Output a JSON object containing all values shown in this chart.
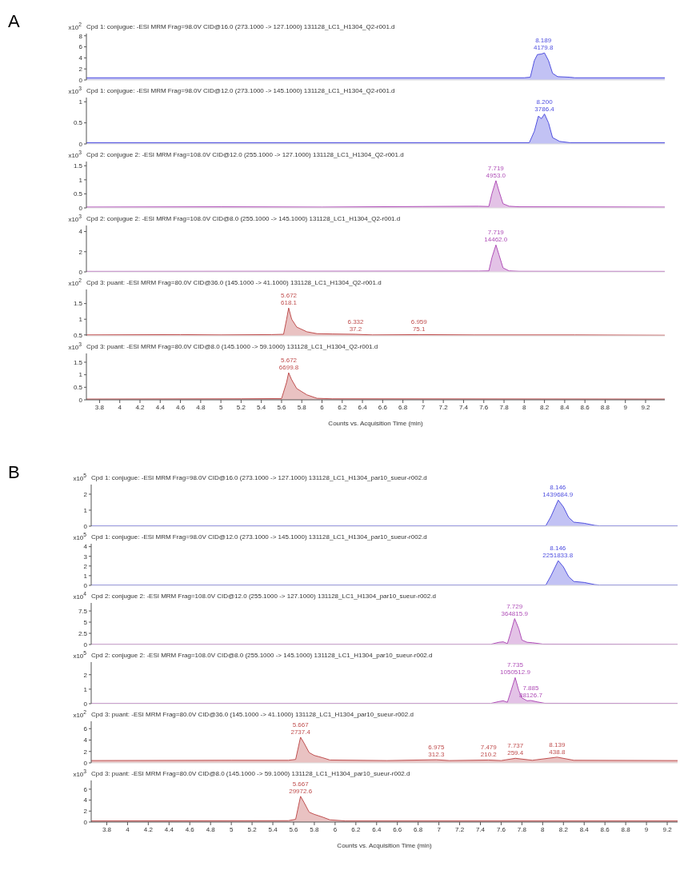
{
  "chart_data": [
    {
      "type": "area",
      "title": "Cpd 1: conjugue: -ESI MRM Frag=98.0V CID@16.0 (273.1000 -> 127.1000) 131128_LC1_H1304_Q2-r001.d",
      "ylabel": "x10$^{2}$",
      "color": "#5050e0",
      "tick_labels": "y",
      "xlim": [
        3.67,
        9.39
      ],
      "ylim": [
        0,
        8.4
      ],
      "yticks": [
        0,
        2,
        4,
        6,
        8
      ],
      "x": [
        3.67,
        8.0,
        8.06,
        8.1,
        8.13,
        8.17,
        8.2,
        8.24,
        8.28,
        8.33,
        8.45,
        8.5,
        9.39
      ],
      "values": [
        0.4,
        0.4,
        0.5,
        3.5,
        4.6,
        4.7,
        4.9,
        3.5,
        1.2,
        0.6,
        0.5,
        0.4,
        0.4
      ],
      "annotations": [
        "A",
        {
          "text": "8.189\n4179.8",
          "x": 8.189,
          "y": 4.9
        }
      ]
    },
    {
      "type": "area",
      "title": "Cpd 1: conjugue: -ESI MRM Frag=98.0V CID@12.0 (273.1000 -> 145.1000) 131128_LC1_H1304_Q2-r001.d",
      "ylabel": "x10$^{3}$",
      "color": "#5050e0",
      "tick_labels": "y",
      "xlim": [
        3.67,
        9.39
      ],
      "ylim": [
        0,
        1.1
      ],
      "yticks": [
        0,
        0.5,
        1
      ],
      "x": [
        3.67,
        8.05,
        8.1,
        8.14,
        8.17,
        8.2,
        8.24,
        8.28,
        8.35,
        8.45,
        9.39
      ],
      "values": [
        0.03,
        0.03,
        0.3,
        0.66,
        0.6,
        0.71,
        0.5,
        0.15,
        0.06,
        0.03,
        0.03
      ],
      "annotations": [
        {
          "text": "8.200\n3786.4",
          "x": 8.2,
          "y": 0.71
        }
      ]
    },
    {
      "type": "area",
      "title": "Cpd 2: conjugue 2: -ESI MRM Frag=108.0V CID@12.0 (255.1000 -> 127.1000) 131128_LC1_H1304_Q2-r001.d",
      "ylabel": "x10$^{3}$",
      "color": "#b050b8",
      "tick_labels": "y",
      "xlim": [
        3.67,
        9.39
      ],
      "ylim": [
        0,
        1.65
      ],
      "yticks": [
        0,
        0.5,
        1,
        1.5
      ],
      "x": [
        3.67,
        5,
        6,
        7,
        7.55,
        7.65,
        7.68,
        7.72,
        7.75,
        7.79,
        7.85,
        7.95,
        9.39
      ],
      "values": [
        0.03,
        0.04,
        0.03,
        0.05,
        0.06,
        0.05,
        0.5,
        0.97,
        0.6,
        0.15,
        0.06,
        0.04,
        0.03
      ],
      "annotations": [
        {
          "text": "7.719\n4953.0",
          "x": 7.719,
          "y": 0.97
        }
      ]
    },
    {
      "type": "area",
      "title": "Cpd 2: conjugue 2: -ESI MRM Frag=108.0V CID@8.0 (255.1000 -> 145.1000) 131128_LC1_H1304_Q2-r001.d",
      "ylabel": "x10$^{3}$",
      "color": "#b050b8",
      "tick_labels": "y",
      "xlim": [
        3.67,
        9.39
      ],
      "ylim": [
        0,
        4.6
      ],
      "yticks": [
        0,
        2,
        4
      ],
      "x": [
        3.67,
        7.55,
        7.65,
        7.68,
        7.72,
        7.75,
        7.79,
        7.85,
        7.95,
        9.39
      ],
      "values": [
        0.05,
        0.08,
        0.1,
        1.4,
        2.67,
        1.7,
        0.4,
        0.1,
        0.06,
        0.05
      ],
      "annotations": [
        {
          "text": "7.719\n14462.0",
          "x": 7.719,
          "y": 2.67
        }
      ]
    },
    {
      "type": "area",
      "title": "Cpd 3: puant: -ESI MRM Frag=80.0V CID@36.0 (145.1000 -> 41.1000) 131128_LC1_H1304_Q2-r001.d",
      "ylabel": "x10$^{2}$",
      "color": "#c05050",
      "tick_labels": "y",
      "xlim": [
        3.67,
        9.39
      ],
      "ylim": [
        0.47,
        1.95
      ],
      "yticks": [
        0.5,
        1,
        1.5
      ],
      "x": [
        3.67,
        4.6,
        5.0,
        5.5,
        5.62,
        5.65,
        5.67,
        5.7,
        5.75,
        5.85,
        5.95,
        6.1,
        6.33,
        6.5,
        6.96,
        7.5,
        8.5,
        9.39
      ],
      "values": [
        0.5,
        0.51,
        0.5,
        0.51,
        0.52,
        1.0,
        1.36,
        1.0,
        0.75,
        0.6,
        0.54,
        0.53,
        0.52,
        0.5,
        0.51,
        0.5,
        0.5,
        0.49
      ],
      "annotations": [
        {
          "text": "5.672\n618.1",
          "x": 5.672,
          "y": 1.36
        },
        {
          "text": "6.332\n37.2",
          "x": 6.332,
          "y": 0.52
        },
        {
          "text": "6.959\n75.1",
          "x": 6.959,
          "y": 0.51
        }
      ]
    },
    {
      "type": "area",
      "title": "Cpd 3: puant: -ESI MRM Frag=80.0V CID@8.0 (145.1000 -> 59.1000) 131128_LC1_H1304_Q2-r001.d",
      "ylabel": "x10$^{3}$",
      "xlabel": "Counts vs. Acquisition Time (min)",
      "color": "#c05050",
      "xlim": [
        3.67,
        9.39
      ],
      "ylim": [
        0,
        1.85
      ],
      "yticks": [
        0,
        0.5,
        1,
        1.5
      ],
      "xticks": [
        3.8,
        4,
        4.2,
        4.4,
        4.6,
        4.8,
        5,
        5.2,
        5.4,
        5.6,
        5.8,
        6,
        6.2,
        6.4,
        6.6,
        6.8,
        7,
        7.2,
        7.4,
        7.6,
        7.8,
        8,
        8.2,
        8.4,
        8.6,
        8.8,
        9,
        9.2
      ],
      "x": [
        3.67,
        5.2,
        5.6,
        5.65,
        5.67,
        5.7,
        5.75,
        5.85,
        5.95,
        6.1,
        9.39
      ],
      "values": [
        0.03,
        0.04,
        0.05,
        0.7,
        1.08,
        0.8,
        0.45,
        0.2,
        0.06,
        0.04,
        0.03
      ],
      "annotations": [
        {
          "text": "5.672\n6699.8",
          "x": 5.672,
          "y": 1.08
        }
      ]
    },
    {
      "type": "area",
      "title": "Cpd 1: conjugue: -ESI MRM Frag=98.0V CID@16.0 (273.1000 -> 127.1000) 131128_LC1_H1304_par10_sueur-r002.d",
      "ylabel": "x10$^{5}$",
      "color": "#5050e0",
      "tick_labels": "y",
      "xlim": [
        3.65,
        9.3
      ],
      "ylim": [
        0,
        2.6
      ],
      "yticks": [
        0,
        1,
        2
      ],
      "x": [
        3.65,
        8.03,
        8.08,
        8.15,
        8.2,
        8.25,
        8.3,
        8.4,
        8.5,
        8.55,
        9.3
      ],
      "values": [
        0.02,
        0.02,
        0.6,
        1.63,
        1.2,
        0.55,
        0.25,
        0.18,
        0.05,
        0.02,
        0.02
      ],
      "annotations": [
        "B",
        {
          "text": "8.146\n1439684.9",
          "x": 8.146,
          "y": 1.63
        }
      ]
    },
    {
      "type": "area",
      "title": "Cpd 1: conjugue: -ESI MRM Frag=98.0V CID@12.0 (273.1000 -> 145.1000) 131128_LC1_H1304_par10_sueur-r002.d",
      "ylabel": "x10$^{5}$",
      "color": "#5050e0",
      "tick_labels": "y",
      "xlim": [
        3.65,
        9.3
      ],
      "ylim": [
        0,
        4.3
      ],
      "yticks": [
        0,
        1,
        2,
        3,
        4
      ],
      "x": [
        3.65,
        8.03,
        8.08,
        8.15,
        8.2,
        8.25,
        8.3,
        8.4,
        8.5,
        8.55,
        9.3
      ],
      "values": [
        0.03,
        0.03,
        1.0,
        2.55,
        1.9,
        0.9,
        0.4,
        0.3,
        0.08,
        0.03,
        0.03
      ],
      "annotations": [
        {
          "text": "8.146\n2251833.8",
          "x": 8.146,
          "y": 2.55
        }
      ]
    },
    {
      "type": "area",
      "title": "Cpd 2: conjugue 2: -ESI MRM Frag=108.0V CID@12.0 (255.1000 -> 127.1000) 131128_LC1_H1304_par10_sueur-r002.d",
      "ylabel": "x10$^{4}$",
      "color": "#b050b8",
      "tick_labels": "y",
      "xlim": [
        3.65,
        9.3
      ],
      "ylim": [
        0,
        9.3
      ],
      "yticks": [
        0,
        2.5,
        5,
        7.5
      ],
      "x": [
        3.65,
        7.5,
        7.58,
        7.62,
        7.66,
        7.69,
        7.73,
        7.77,
        7.8,
        7.85,
        7.9,
        8.0,
        9.3
      ],
      "values": [
        0.05,
        0.05,
        0.5,
        0.6,
        0.2,
        2.5,
        5.8,
        3.5,
        1.0,
        0.5,
        0.4,
        0.1,
        0.05
      ],
      "annotations": [
        {
          "text": "7.729\n364815.9",
          "x": 7.729,
          "y": 5.8
        }
      ]
    },
    {
      "type": "area",
      "title": "Cpd 2: conjugue 2: -ESI MRM Frag=108.0V CID@8.0 (255.1000 -> 145.1000) 131128_LC1_H1304_par10_sueur-r002.d",
      "ylabel": "x10$^{5}$",
      "color": "#b050b8",
      "tick_labels": "y",
      "xlim": [
        3.65,
        9.3
      ],
      "ylim": [
        0,
        2.87
      ],
      "yticks": [
        0,
        1,
        2
      ],
      "x": [
        3.65,
        7.5,
        7.58,
        7.62,
        7.66,
        7.7,
        7.735,
        7.77,
        7.8,
        7.85,
        7.885,
        7.95,
        8.02,
        9.3
      ],
      "values": [
        0.02,
        0.02,
        0.15,
        0.2,
        0.1,
        1.0,
        1.8,
        0.9,
        0.4,
        0.2,
        0.22,
        0.12,
        0.03,
        0.02
      ],
      "annotations": [
        {
          "text": "7.735\n1050512.9",
          "x": 7.735,
          "y": 1.8
        },
        {
          "text": "7.885\n88126.7",
          "x": 7.885,
          "y": 0.22
        }
      ]
    },
    {
      "type": "area",
      "title": "Cpd 3: puant: -ESI MRM Frag=80.0V CID@36.0 (145.1000 -> 41.1000) 131128_LC1_H1304_par10_sueur-r002.d",
      "ylabel": "x10$^{2}$",
      "color": "#c05050",
      "tick_labels": "y",
      "xlim": [
        3.65,
        9.3
      ],
      "ylim": [
        0,
        7.3
      ],
      "yticks": [
        0,
        2,
        4,
        6
      ],
      "x": [
        3.65,
        5.0,
        5.55,
        5.62,
        5.667,
        5.7,
        5.75,
        5.8,
        5.88,
        5.95,
        6.5,
        6.975,
        7.1,
        7.479,
        7.6,
        7.737,
        7.9,
        8.139,
        8.3,
        9.3
      ],
      "values": [
        0.4,
        0.45,
        0.45,
        0.6,
        4.5,
        3.5,
        1.8,
        1.3,
        0.9,
        0.5,
        0.4,
        0.55,
        0.4,
        0.5,
        0.4,
        0.8,
        0.45,
        1.0,
        0.45,
        0.4
      ],
      "annotations": [
        {
          "text": "5.667\n2737.4",
          "x": 5.667,
          "y": 4.5
        },
        {
          "text": "6.975\n312.3",
          "x": 6.975,
          "y": 0.55
        },
        {
          "text": "7.479\n210.2",
          "x": 7.479,
          "y": 0.5
        },
        {
          "text": "7.737\n259.4",
          "x": 7.737,
          "y": 0.8
        },
        {
          "text": "8.139\n438.8",
          "x": 8.139,
          "y": 1.0
        }
      ]
    },
    {
      "type": "area",
      "title": "Cpd 3: puant: -ESI MRM Frag=80.0V CID@8.0 (145.1000 -> 59.1000) 131128_LC1_H1304_par10_sueur-r002.d",
      "ylabel": "x10$^{3}$",
      "xlabel": "Counts vs. Acquisition Time (min)",
      "color": "#c05050",
      "xlim": [
        3.65,
        9.3
      ],
      "ylim": [
        0,
        7.6
      ],
      "yticks": [
        0,
        2,
        4,
        6
      ],
      "xticks": [
        3.8,
        4,
        4.2,
        4.4,
        4.6,
        4.8,
        5,
        5.2,
        5.4,
        5.6,
        5.8,
        6,
        6.2,
        6.4,
        6.6,
        6.8,
        7,
        7.2,
        7.4,
        7.6,
        7.8,
        8,
        8.2,
        8.4,
        8.6,
        8.8,
        9,
        9.2
      ],
      "x": [
        3.65,
        5.55,
        5.62,
        5.667,
        5.7,
        5.75,
        5.8,
        5.88,
        5.95,
        6.1,
        9.3
      ],
      "values": [
        0.2,
        0.25,
        0.5,
        4.7,
        3.6,
        1.8,
        1.4,
        0.9,
        0.4,
        0.2,
        0.2
      ],
      "annotations": [
        {
          "text": "5.667\n29972.6",
          "x": 5.667,
          "y": 4.7
        }
      ]
    }
  ]
}
